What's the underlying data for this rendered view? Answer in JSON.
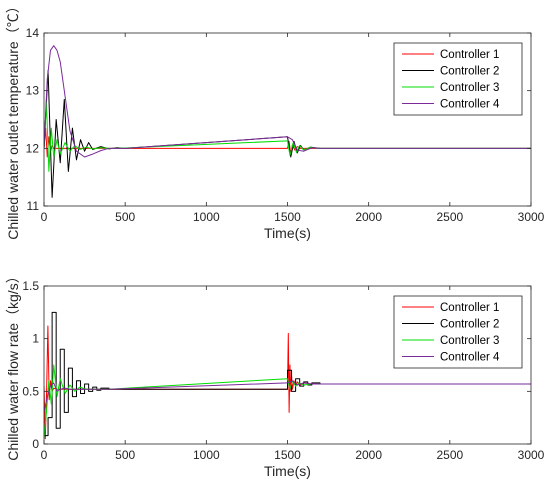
{
  "chart_data": [
    {
      "type": "line",
      "title": "",
      "xlabel": "Time(s)",
      "ylabel": "Chilled water outlet temperature（℃）",
      "xlim": [
        0,
        3000
      ],
      "ylim": [
        11,
        14
      ],
      "xticks": [
        "0",
        "500",
        "1000",
        "1500",
        "2000",
        "2500",
        "3000"
      ],
      "yticks": [
        "11",
        "12",
        "13",
        "14"
      ],
      "legend_position": "top-right",
      "series": [
        {
          "name": "Controller 1",
          "color": "#ff0000",
          "step": false,
          "x": [
            0,
            10,
            20,
            30,
            40,
            50,
            60,
            80,
            100,
            130,
            160,
            200,
            300,
            1500,
            1510,
            1520,
            1530,
            1545,
            1560,
            1580,
            1600,
            1650,
            3000
          ],
          "y": [
            12,
            12.35,
            11.85,
            12.2,
            11.95,
            12.05,
            12,
            12,
            12,
            12,
            12,
            12,
            12,
            12,
            12.12,
            11.9,
            12.06,
            11.97,
            12.03,
            12,
            12,
            12,
            12
          ]
        },
        {
          "name": "Controller 2",
          "color": "#000000",
          "step": false,
          "x": [
            0,
            25,
            50,
            75,
            100,
            125,
            150,
            175,
            200,
            225,
            250,
            275,
            300,
            350,
            400,
            450,
            500,
            1500,
            1520,
            1540,
            1560,
            1580,
            1600,
            1640,
            1700,
            3000
          ],
          "y": [
            12,
            13.35,
            11.15,
            12.5,
            11.75,
            12.85,
            11.6,
            12.35,
            11.8,
            12.15,
            11.95,
            12.1,
            11.98,
            12.03,
            11.99,
            12.01,
            12,
            12.2,
            11.85,
            12.12,
            11.92,
            12.05,
            11.97,
            12.02,
            12,
            12
          ]
        },
        {
          "name": "Controller 3",
          "color": "#00dd00",
          "step": false,
          "x": [
            0,
            15,
            30,
            45,
            60,
            80,
            100,
            130,
            160,
            190,
            220,
            260,
            300,
            350,
            400,
            450,
            1500,
            1515,
            1535,
            1555,
            1575,
            1600,
            1640,
            1680,
            3000
          ],
          "y": [
            12,
            12.8,
            11.6,
            12.35,
            11.85,
            12.15,
            11.9,
            12.1,
            11.95,
            12.05,
            11.98,
            12.02,
            11.99,
            12.01,
            12,
            12,
            12.13,
            11.88,
            12.1,
            11.93,
            12.05,
            11.97,
            12.02,
            12,
            12
          ]
        },
        {
          "name": "Controller 4",
          "color": "#7a2a9a",
          "step": false,
          "x": [
            0,
            20,
            40,
            60,
            80,
            100,
            130,
            160,
            200,
            250,
            300,
            350,
            400,
            450,
            500,
            1500,
            1530,
            1560,
            1600,
            1650,
            1700,
            3000
          ],
          "y": [
            12,
            13.2,
            13.7,
            13.78,
            13.7,
            13.5,
            12.9,
            12.3,
            11.95,
            11.85,
            11.9,
            11.96,
            12,
            12,
            12,
            12.2,
            12.15,
            11.97,
            11.95,
            12.01,
            12,
            12
          ]
        }
      ]
    },
    {
      "type": "line",
      "title": "",
      "xlabel": "Time(s)",
      "ylabel": "Chilled water flow rate（kg/s）",
      "xlim": [
        0,
        3000
      ],
      "ylim": [
        0,
        1.5
      ],
      "xticks": [
        "0",
        "500",
        "1000",
        "1500",
        "2000",
        "2500",
        "3000"
      ],
      "yticks": [
        "0",
        "0.5",
        "1",
        "1.5"
      ],
      "legend_position": "top-right",
      "series": [
        {
          "name": "Controller 1",
          "color": "#ff0000",
          "step": false,
          "x": [
            0,
            8,
            16,
            24,
            32,
            40,
            50,
            60,
            80,
            100,
            150,
            300,
            1500,
            1505,
            1510,
            1515,
            1520,
            1525,
            1530,
            1540,
            1550,
            1560,
            1580,
            1600,
            1650,
            1700,
            1800,
            3000
          ],
          "y": [
            0.55,
            0.05,
            0.5,
            1.12,
            0.42,
            0.6,
            0.5,
            0.53,
            0.52,
            0.52,
            0.52,
            0.52,
            0.52,
            1.05,
            0.3,
            0.75,
            0.5,
            0.65,
            0.52,
            0.6,
            0.55,
            0.59,
            0.56,
            0.58,
            0.57,
            0.57,
            0.57,
            0.57
          ]
        },
        {
          "name": "Controller 2",
          "color": "#000000",
          "step": true,
          "x": [
            0,
            25,
            50,
            75,
            100,
            125,
            150,
            175,
            200,
            225,
            250,
            275,
            300,
            325,
            350,
            400,
            450,
            500,
            1500,
            1525,
            1550,
            1575,
            1600,
            1625,
            1650,
            1700,
            1800,
            3000
          ],
          "y": [
            0.08,
            0.25,
            1.25,
            0.15,
            0.9,
            0.3,
            0.72,
            0.45,
            0.6,
            0.48,
            0.57,
            0.5,
            0.54,
            0.51,
            0.53,
            0.52,
            0.52,
            0.52,
            0.7,
            0.5,
            0.62,
            0.55,
            0.59,
            0.56,
            0.58,
            0.57,
            0.57,
            0.57
          ]
        },
        {
          "name": "Controller 3",
          "color": "#00dd00",
          "step": false,
          "x": [
            0,
            15,
            30,
            45,
            60,
            80,
            100,
            130,
            160,
            190,
            220,
            260,
            300,
            400,
            1500,
            1515,
            1530,
            1550,
            1570,
            1600,
            1650,
            1700,
            3000
          ],
          "y": [
            0.05,
            0.3,
            0.6,
            0.38,
            0.75,
            0.45,
            0.62,
            0.48,
            0.56,
            0.5,
            0.54,
            0.52,
            0.52,
            0.52,
            0.62,
            0.52,
            0.6,
            0.55,
            0.58,
            0.56,
            0.57,
            0.57,
            0.57
          ]
        },
        {
          "name": "Controller 4",
          "color": "#7a2a9a",
          "step": false,
          "x": [
            0,
            20,
            40,
            60,
            80,
            100,
            130,
            160,
            200,
            250,
            300,
            400,
            1500,
            1530,
            1560,
            1600,
            1650,
            1700,
            3000
          ],
          "y": [
            0.3,
            0.45,
            0.55,
            0.58,
            0.5,
            0.52,
            0.53,
            0.52,
            0.52,
            0.52,
            0.52,
            0.52,
            0.58,
            0.6,
            0.56,
            0.58,
            0.57,
            0.57,
            0.57
          ]
        }
      ]
    }
  ]
}
